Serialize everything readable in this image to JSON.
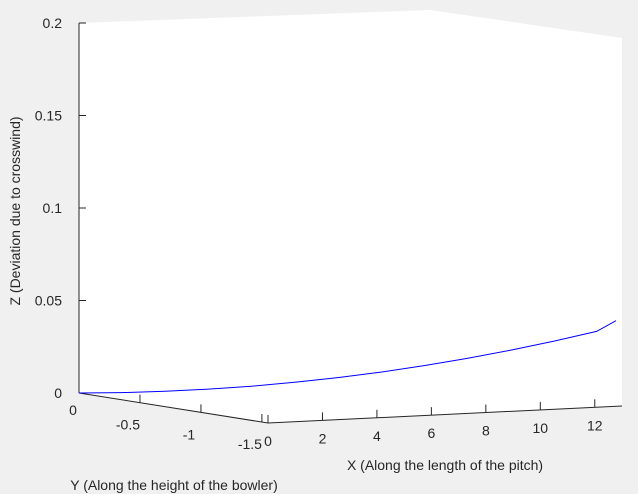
{
  "chart_data": {
    "type": "line",
    "projection": "3d",
    "title": "",
    "xlabel": "X (Along the length of the pitch)",
    "ylabel": "Y (Along the height of the bowler)",
    "zlabel": "Z (Deviation due to crosswind)",
    "xlim": [
      0,
      13
    ],
    "ylim": [
      -2,
      0
    ],
    "zlim": [
      0,
      0.2
    ],
    "x_ticks": [
      "0",
      "2",
      "4",
      "6",
      "8",
      "10",
      "12"
    ],
    "y_ticks": [
      "0",
      "-0.5",
      "-1",
      "-1.5"
    ],
    "z_ticks": [
      "0",
      "0.05",
      "0.1",
      "0.15",
      "0.2"
    ],
    "grid": false,
    "legend": "none",
    "series": [
      {
        "color": "#0000ff",
        "x": [
          0,
          1,
          2,
          3,
          4,
          5,
          6,
          7,
          8,
          9,
          10,
          11,
          12,
          13
        ],
        "y": [
          0,
          0,
          0,
          0,
          0,
          0,
          0,
          0,
          0,
          0,
          0,
          0,
          0,
          0
        ],
        "z": [
          0,
          0.0002,
          0.0009,
          0.0021,
          0.0037,
          0.0058,
          0.0083,
          0.0113,
          0.0148,
          0.0187,
          0.0231,
          0.028,
          0.0333,
          0.0391
        ]
      }
    ],
    "colors": {
      "background": "#f0f0f0",
      "plot_area": "#ffffff",
      "axis": "#262626",
      "line": "#0000ff"
    }
  }
}
